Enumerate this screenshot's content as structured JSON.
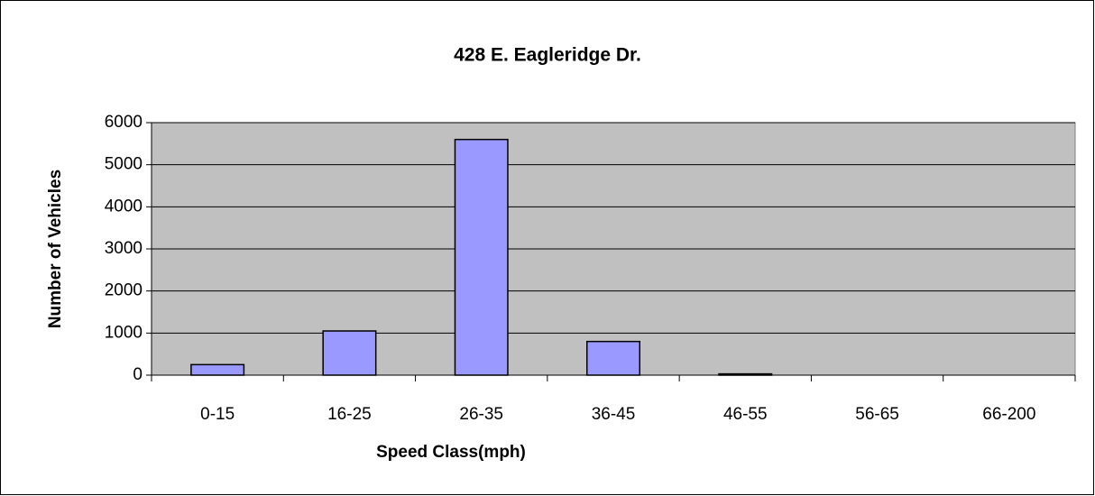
{
  "chart_data": {
    "type": "bar",
    "title": "428 E. Eagleridge Dr.",
    "x_label": "Speed Class(mph)",
    "y_label": "Number of Vehicles",
    "categories": [
      "0-15",
      "16-25",
      "26-35",
      "36-45",
      "46-55",
      "56-65",
      "66-200"
    ],
    "values": [
      250,
      1050,
      5600,
      800,
      30,
      0,
      0
    ],
    "color": "#9999ff",
    "ylim": [
      0,
      6000
    ],
    "yticks": [
      0,
      1000,
      2000,
      3000,
      4000,
      5000,
      6000
    ],
    "grid": true
  }
}
